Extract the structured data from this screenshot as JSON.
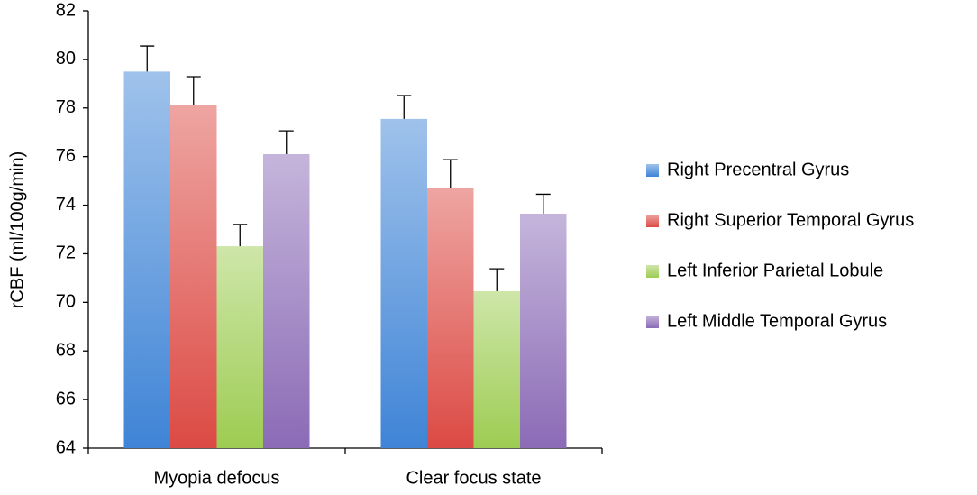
{
  "chart_data": {
    "type": "bar",
    "y_label": "rCBF (ml/100g/min)",
    "categories": [
      "Myopia defocus",
      "Clear focus state"
    ],
    "series": [
      {
        "name": "Right Precentral Gyrus",
        "color": "#3f84d6",
        "values": [
          79.5,
          77.55
        ],
        "errors": [
          1.05,
          0.96
        ]
      },
      {
        "name": "Right Superior Temporal Gyrus",
        "color": "#dc4a44",
        "values": [
          78.14,
          74.72
        ],
        "errors": [
          1.15,
          1.15
        ]
      },
      {
        "name": "Left Inferior Parietal Lobule",
        "color": "#9dcc52",
        "values": [
          72.31,
          70.46
        ],
        "errors": [
          0.9,
          0.92
        ]
      },
      {
        "name": "Left Middle Temporal Gyrus",
        "color": "#8b6bb6",
        "values": [
          76.1,
          73.65
        ],
        "errors": [
          0.96,
          0.8
        ]
      }
    ],
    "ylim": [
      64,
      82
    ],
    "yticks": [
      64,
      66,
      68,
      70,
      72,
      74,
      76,
      78,
      80,
      82
    ],
    "grid": false,
    "legend": "right"
  }
}
